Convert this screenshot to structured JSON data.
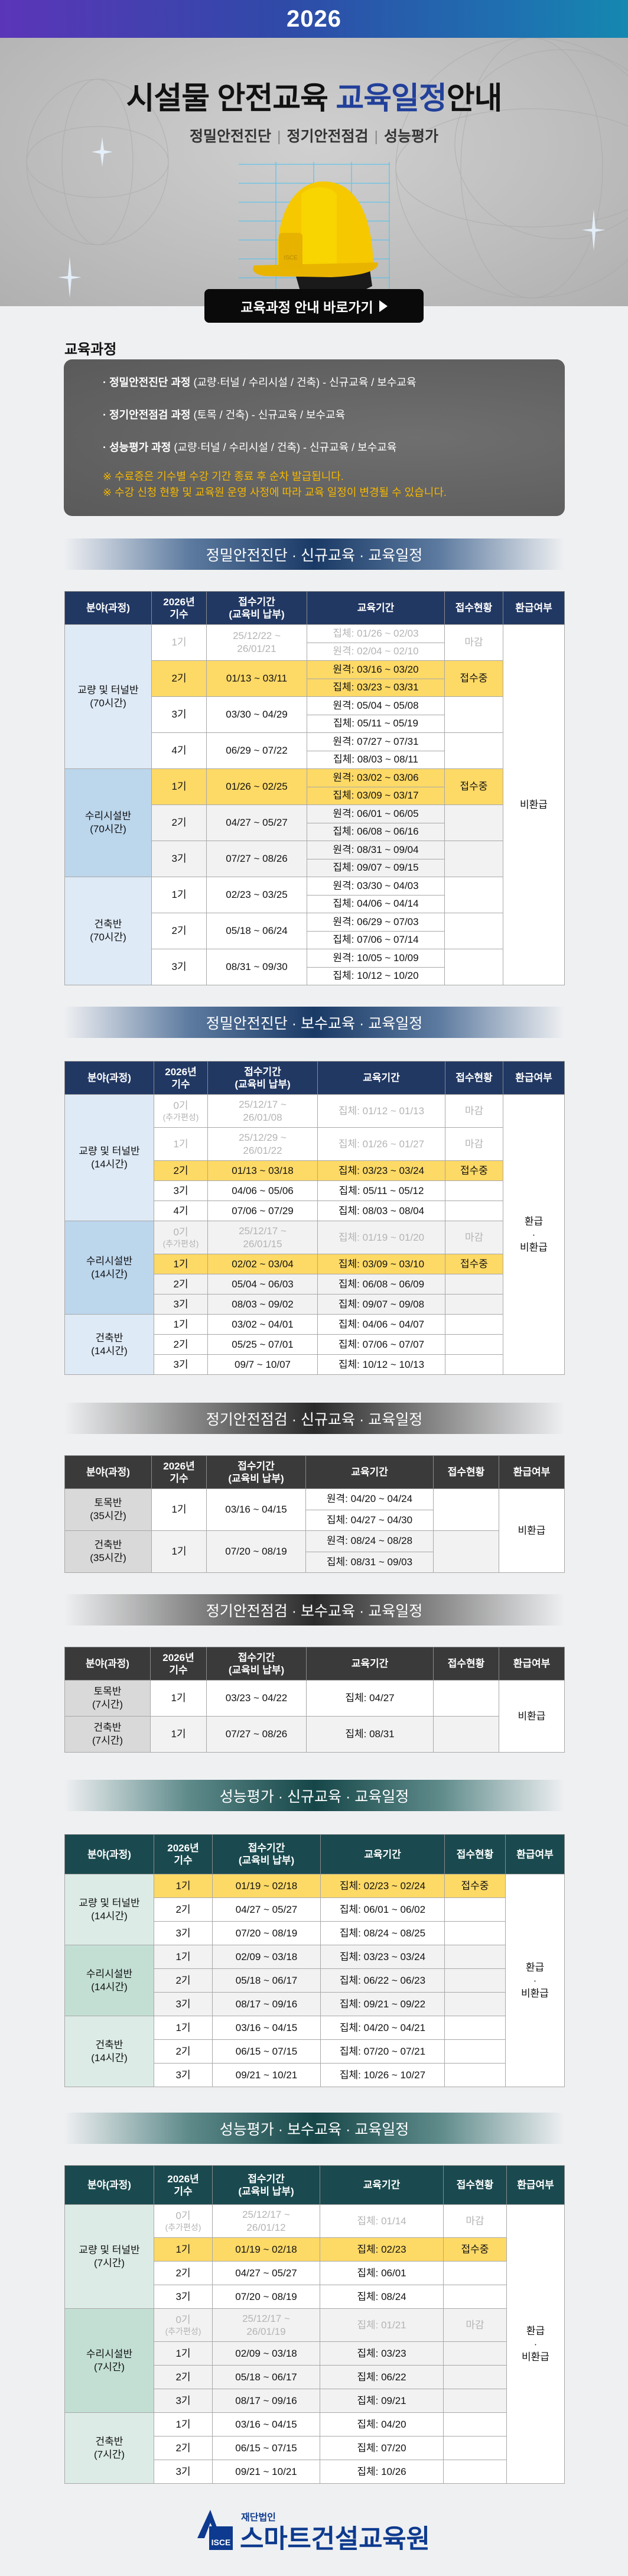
{
  "banner": {
    "year": "2026"
  },
  "hero": {
    "title_main": "시설물 안전교육 ",
    "title_accent": "교육일정",
    "title_tail": "안내",
    "subtitles": [
      "정밀안전진단",
      "정기안전점검",
      "성능평가"
    ],
    "goto_button": "교육과정 안내 바로가기"
  },
  "courses": {
    "heading": "교육과정",
    "items": [
      {
        "bold": "· 정밀안전진단 과정",
        "rest": " (교량·터널 / 수리시설 / 건축) - 신규교육 / 보수교육"
      },
      {
        "bold": "· 정기안전점검 과정",
        "rest": " (토목 / 건축) - 신규교육 / 보수교육"
      },
      {
        "bold": "· 성능평가 과정",
        "rest": " (교량·터널 / 수리시설 / 건축) - 신규교육 / 보수교육"
      }
    ],
    "notes": [
      "※ 수료증은 기수별 수강 기간 종료 후 순차 발급됩니다.",
      "※ 수강 신청 현황 및 교육원 운영 사정에 따라 교육 일정이 변경될 수 있습니다."
    ]
  },
  "tables": [
    {
      "title": "정밀안전진단 · 신규교육 · 교육일정",
      "theme": {
        "header": "#213863",
        "cat_light": "#deeaf6",
        "cat_dark": "#bcd6ec"
      },
      "headers": [
        "분야(과정)",
        "2026년\n기수",
        "접수기간\n(교육비 납부)",
        "교육기간",
        "접수현황",
        "환급여부"
      ],
      "refund": "비환급",
      "groups": [
        {
          "category": "교량 및 터널반\n(70시간)",
          "rows": [
            {
              "term": "1기",
              "reg": "25/12/22 ~\n26/01/21",
              "edu": [
                "집체: 01/26 ~ 02/03",
                "원격: 02/04 ~ 02/10"
              ],
              "status": "마감",
              "state": "closed"
            },
            {
              "term": "2기",
              "reg": "01/13 ~ 03/11",
              "edu": [
                "원격: 03/16 ~ 03/20",
                "집체: 03/23 ~ 03/31"
              ],
              "status": "접수중",
              "state": "open"
            },
            {
              "term": "3기",
              "reg": "03/30 ~ 04/29",
              "edu": [
                "원격: 05/04 ~ 05/08",
                "집체: 05/11 ~ 05/19"
              ],
              "status": "",
              "state": ""
            },
            {
              "term": "4기",
              "reg": "06/29 ~ 07/22",
              "edu": [
                "원격: 07/27 ~ 07/31",
                "집체: 08/03 ~ 08/11"
              ],
              "status": "",
              "state": ""
            }
          ]
        },
        {
          "category": "수리시설반\n(70시간)",
          "rows": [
            {
              "term": "1기",
              "reg": "01/26 ~ 02/25",
              "edu": [
                "원격: 03/02 ~ 03/06",
                "집체: 03/09 ~ 03/17"
              ],
              "status": "접수중",
              "state": "open"
            },
            {
              "term": "2기",
              "reg": "04/27 ~ 05/27",
              "edu": [
                "원격: 06/01 ~ 06/05",
                "집체: 06/08 ~ 06/16"
              ],
              "status": "",
              "state": ""
            },
            {
              "term": "3기",
              "reg": "07/27 ~ 08/26",
              "edu": [
                "원격: 08/31 ~ 09/04",
                "집체: 09/07 ~ 09/15"
              ],
              "status": "",
              "state": ""
            }
          ]
        },
        {
          "category": "건축반\n(70시간)",
          "rows": [
            {
              "term": "1기",
              "reg": "02/23 ~ 03/25",
              "edu": [
                "원격: 03/30 ~ 04/03",
                "집체: 04/06 ~ 04/14"
              ],
              "status": "",
              "state": ""
            },
            {
              "term": "2기",
              "reg": "05/18 ~ 06/24",
              "edu": [
                "원격: 06/29 ~ 07/03",
                "집체: 07/06 ~ 07/14"
              ],
              "status": "",
              "state": ""
            },
            {
              "term": "3기",
              "reg": "08/31 ~ 09/30",
              "edu": [
                "원격: 10/05 ~ 10/09",
                "집체: 10/12 ~ 10/20"
              ],
              "status": "",
              "state": ""
            }
          ]
        }
      ]
    },
    {
      "title": "정밀안전진단 · 보수교육 · 교육일정",
      "theme": {
        "header": "#213863",
        "cat_light": "#deeaf6",
        "cat_dark": "#bcd6ec"
      },
      "headers": [
        "분야(과정)",
        "2026년\n기수",
        "접수기간\n(교육비 납부)",
        "교육기간",
        "접수현황",
        "환급여부"
      ],
      "refund": "환급\n·\n비환급",
      "groups": [
        {
          "category": "교량 및 터널반\n(14시간)",
          "rows": [
            {
              "term": "0기",
              "note": "(추가편성)",
              "reg": "25/12/17 ~\n26/01/08",
              "edu": [
                "집체: 01/12 ~ 01/13"
              ],
              "status": "마감",
              "state": "closed"
            },
            {
              "term": "1기",
              "reg": "25/12/29 ~\n26/01/22",
              "edu": [
                "집체: 01/26 ~ 01/27"
              ],
              "status": "마감",
              "state": "closed"
            },
            {
              "term": "2기",
              "reg": "01/13 ~ 03/18",
              "edu": [
                "집체: 03/23 ~ 03/24"
              ],
              "status": "접수중",
              "state": "open"
            },
            {
              "term": "3기",
              "reg": "04/06 ~ 05/06",
              "edu": [
                "집체: 05/11 ~ 05/12"
              ],
              "status": "",
              "state": ""
            },
            {
              "term": "4기",
              "reg": "07/06 ~ 07/29",
              "edu": [
                "집체: 08/03 ~ 08/04"
              ],
              "status": "",
              "state": ""
            }
          ]
        },
        {
          "category": "수리시설반\n(14시간)",
          "rows": [
            {
              "term": "0기",
              "note": "(추가편성)",
              "reg": "25/12/17 ~\n26/01/15",
              "edu": [
                "집체: 01/19 ~ 01/20"
              ],
              "status": "마감",
              "state": "closed"
            },
            {
              "term": "1기",
              "reg": "02/02 ~ 03/04",
              "edu": [
                "집체: 03/09 ~ 03/10"
              ],
              "status": "접수중",
              "state": "open"
            },
            {
              "term": "2기",
              "reg": "05/04 ~ 06/03",
              "edu": [
                "집체: 06/08 ~ 06/09"
              ],
              "status": "",
              "state": ""
            },
            {
              "term": "3기",
              "reg": "08/03 ~ 09/02",
              "edu": [
                "집체: 09/07 ~ 09/08"
              ],
              "status": "",
              "state": ""
            }
          ]
        },
        {
          "category": "건축반\n(14시간)",
          "rows": [
            {
              "term": "1기",
              "reg": "03/02 ~ 04/01",
              "edu": [
                "집체: 04/06 ~ 04/07"
              ],
              "status": "",
              "state": ""
            },
            {
              "term": "2기",
              "reg": "05/25 ~ 07/01",
              "edu": [
                "집체: 07/06 ~ 07/07"
              ],
              "status": "",
              "state": ""
            },
            {
              "term": "3기",
              "reg": "09/7 ~ 10/07",
              "edu": [
                "집체: 10/12 ~ 10/13"
              ],
              "status": "",
              "state": ""
            }
          ]
        }
      ]
    },
    {
      "title": "정기안전점검 · 신규교육 · 교육일정",
      "theme": {
        "header": "#3a3a3a",
        "cat_light": "#d9d9d9",
        "cat_dark": "#d9d9d9"
      },
      "headers": [
        "분야(과정)",
        "2026년\n기수",
        "접수기간\n(교육비 납부)",
        "교육기간",
        "접수현황",
        "환급여부"
      ],
      "refund": "비환급",
      "groups": [
        {
          "category": "토목반\n(35시간)",
          "rows": [
            {
              "term": "1기",
              "reg": "03/16 ~ 04/15",
              "edu": [
                "원격: 04/20 ~ 04/24",
                "집체: 04/27 ~ 04/30"
              ],
              "status": "",
              "state": ""
            }
          ]
        },
        {
          "category": "건축반\n(35시간)",
          "rows": [
            {
              "term": "1기",
              "reg": "07/20 ~ 08/19",
              "edu": [
                "원격: 08/24 ~ 08/28",
                "집체: 08/31 ~ 09/03"
              ],
              "status": "",
              "state": ""
            }
          ]
        }
      ]
    },
    {
      "title": "정기안전점검 · 보수교육 · 교육일정",
      "theme": {
        "header": "#3a3a3a",
        "cat_light": "#d9d9d9",
        "cat_dark": "#d9d9d9"
      },
      "headers": [
        "분야(과정)",
        "2026년\n기수",
        "접수기간\n(교육비 납부)",
        "교육기간",
        "접수현황",
        "환급여부"
      ],
      "refund": "비환급",
      "groups": [
        {
          "category": "토목반\n(7시간)",
          "rows": [
            {
              "term": "1기",
              "reg": "03/23 ~ 04/22",
              "edu": [
                "집체: 04/27"
              ],
              "status": "",
              "state": ""
            }
          ]
        },
        {
          "category": "건축반\n(7시간)",
          "rows": [
            {
              "term": "1기",
              "reg": "07/27 ~ 08/26",
              "edu": [
                "집체: 08/31"
              ],
              "status": "",
              "state": ""
            }
          ]
        }
      ]
    },
    {
      "title": "성능평가 · 신규교육 · 교육일정",
      "theme": {
        "header": "#1a4a4f",
        "cat_light": "#dcebe6",
        "cat_dark": "#c3dfd4"
      },
      "headers": [
        "분야(과정)",
        "2026년\n기수",
        "접수기간\n(교육비 납부)",
        "교육기간",
        "접수현황",
        "환급여부"
      ],
      "refund": "환급\n·\n비환급",
      "groups": [
        {
          "category": "교량 및 터널반\n(14시간)",
          "rows": [
            {
              "term": "1기",
              "reg": "01/19 ~ 02/18",
              "edu": [
                "집체: 02/23 ~ 02/24"
              ],
              "status": "접수중",
              "state": "open"
            },
            {
              "term": "2기",
              "reg": "04/27 ~ 05/27",
              "edu": [
                "집체: 06/01 ~ 06/02"
              ],
              "status": "",
              "state": ""
            },
            {
              "term": "3기",
              "reg": "07/20 ~ 08/19",
              "edu": [
                "집체: 08/24 ~ 08/25"
              ],
              "status": "",
              "state": ""
            }
          ]
        },
        {
          "category": "수리시설반\n(14시간)",
          "rows": [
            {
              "term": "1기",
              "reg": "02/09 ~ 03/18",
              "edu": [
                "집체: 03/23 ~ 03/24"
              ],
              "status": "",
              "state": ""
            },
            {
              "term": "2기",
              "reg": "05/18 ~ 06/17",
              "edu": [
                "집체: 06/22 ~ 06/23"
              ],
              "status": "",
              "state": ""
            },
            {
              "term": "3기",
              "reg": "08/17 ~ 09/16",
              "edu": [
                "집체: 09/21 ~ 09/22"
              ],
              "status": "",
              "state": ""
            }
          ]
        },
        {
          "category": "건축반\n(14시간)",
          "rows": [
            {
              "term": "1기",
              "reg": "03/16 ~ 04/15",
              "edu": [
                "집체: 04/20 ~ 04/21"
              ],
              "status": "",
              "state": ""
            },
            {
              "term": "2기",
              "reg": "06/15 ~ 07/15",
              "edu": [
                "집체: 07/20 ~ 07/21"
              ],
              "status": "",
              "state": ""
            },
            {
              "term": "3기",
              "reg": "09/21 ~ 10/21",
              "edu": [
                "집체: 10/26 ~ 10/27"
              ],
              "status": "",
              "state": ""
            }
          ]
        }
      ]
    },
    {
      "title": "성능평가 · 보수교육 · 교육일정",
      "theme": {
        "header": "#1a4a4f",
        "cat_light": "#dcebe6",
        "cat_dark": "#c3dfd4"
      },
      "headers": [
        "분야(과정)",
        "2026년\n기수",
        "접수기간\n(교육비 납부)",
        "교육기간",
        "접수현황",
        "환급여부"
      ],
      "refund": "환급\n·\n비환급",
      "groups": [
        {
          "category": "교량 및 터널반\n(7시간)",
          "rows": [
            {
              "term": "0기",
              "note": "(추가편성)",
              "reg": "25/12/17 ~\n26/01/12",
              "edu": [
                "집체: 01/14"
              ],
              "status": "마감",
              "state": "closed"
            },
            {
              "term": "1기",
              "reg": "01/19 ~ 02/18",
              "edu": [
                "집체: 02/23"
              ],
              "status": "접수중",
              "state": "open"
            },
            {
              "term": "2기",
              "reg": "04/27 ~ 05/27",
              "edu": [
                "집체: 06/01"
              ],
              "status": "",
              "state": ""
            },
            {
              "term": "3기",
              "reg": "07/20 ~ 08/19",
              "edu": [
                "집체: 08/24"
              ],
              "status": "",
              "state": ""
            }
          ]
        },
        {
          "category": "수리시설반\n(7시간)",
          "rows": [
            {
              "term": "0기",
              "note": "(추가편성)",
              "reg": "25/12/17 ~\n26/01/19",
              "edu": [
                "집체: 01/21"
              ],
              "status": "마감",
              "state": "closed"
            },
            {
              "term": "1기",
              "reg": "02/09 ~ 03/18",
              "edu": [
                "집체: 03/23"
              ],
              "status": "",
              "state": ""
            },
            {
              "term": "2기",
              "reg": "05/18 ~ 06/17",
              "edu": [
                "집체: 06/22"
              ],
              "status": "",
              "state": ""
            },
            {
              "term": "3기",
              "reg": "08/17 ~ 09/16",
              "edu": [
                "집체: 09/21"
              ],
              "status": "",
              "state": ""
            }
          ]
        },
        {
          "category": "건축반\n(7시간)",
          "rows": [
            {
              "term": "1기",
              "reg": "03/16 ~ 04/15",
              "edu": [
                "집체: 04/20"
              ],
              "status": "",
              "state": ""
            },
            {
              "term": "2기",
              "reg": "06/15 ~ 07/15",
              "edu": [
                "집체: 07/20"
              ],
              "status": "",
              "state": ""
            },
            {
              "term": "3기",
              "reg": "09/21 ~ 10/21",
              "edu": [
                "집체: 10/26"
              ],
              "status": "",
              "state": ""
            }
          ]
        }
      ]
    }
  ],
  "footer": {
    "logo_small": "재단법인",
    "logo_main": "스마트건설교육원",
    "logo_mark": "ISCE",
    "logo_color": "#0d3a8e"
  }
}
